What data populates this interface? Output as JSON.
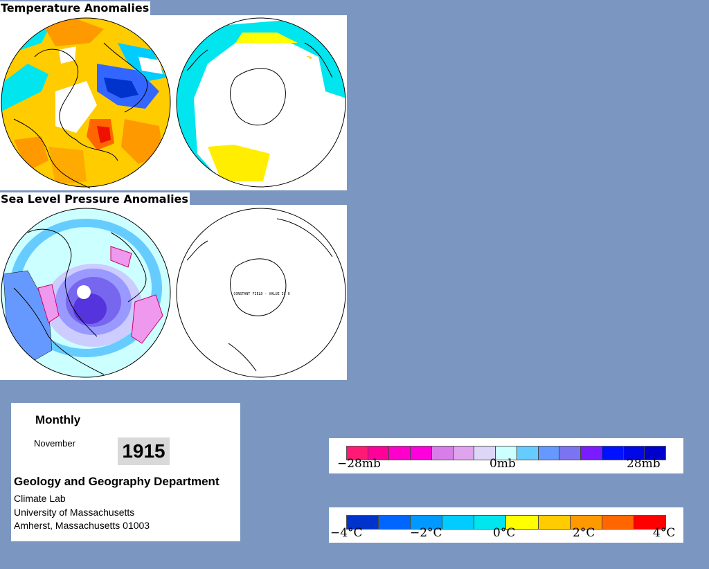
{
  "temperature_section": {
    "title": "Temperature Anomalies",
    "maps": [
      {
        "hemisphere": "northern",
        "content": "temperature anomaly map"
      },
      {
        "hemisphere": "southern",
        "content": "temperature anomaly map"
      }
    ]
  },
  "pressure_section": {
    "title": "Sea Level Pressure Anomalies",
    "maps": [
      {
        "hemisphere": "northern",
        "content": "pressure anomaly contour map"
      },
      {
        "hemisphere": "southern",
        "content": "pressure anomaly map",
        "annotation": "CONSTANT FIELD - VALUE IS 0"
      }
    ]
  },
  "info": {
    "period_label": "Monthly",
    "month": "November",
    "year": "1915",
    "department": "Geology and Geography Department",
    "lab": "Climate Lab",
    "university": "University of Massachusetts",
    "address": "Amherst, Massachusetts 01003"
  },
  "pressure_legend": {
    "labels": [
      "−28mb",
      "0mb",
      "28mb"
    ],
    "colors": [
      "#ff1a75",
      "#ff0099",
      "#ff00cc",
      "#ff00dd",
      "#d77ee8",
      "#e0a3ee",
      "#ddd6f7",
      "#ccffff",
      "#66ccff",
      "#6699ff",
      "#7c73f0",
      "#7a1cff",
      "#0011ff",
      "#0008e8",
      "#0000cc"
    ]
  },
  "temperature_legend": {
    "labels": [
      "−4°C",
      "−2°C",
      "0°C",
      "2°C",
      "4°C"
    ],
    "colors": [
      "#0033cc",
      "#0066ff",
      "#0099ff",
      "#00ccff",
      "#00e5ee",
      "#ffff00",
      "#ffcc00",
      "#ff9900",
      "#ff6600",
      "#ff0000"
    ]
  },
  "colors": {
    "background": "#7b97c1",
    "panel": "#ffffff"
  }
}
